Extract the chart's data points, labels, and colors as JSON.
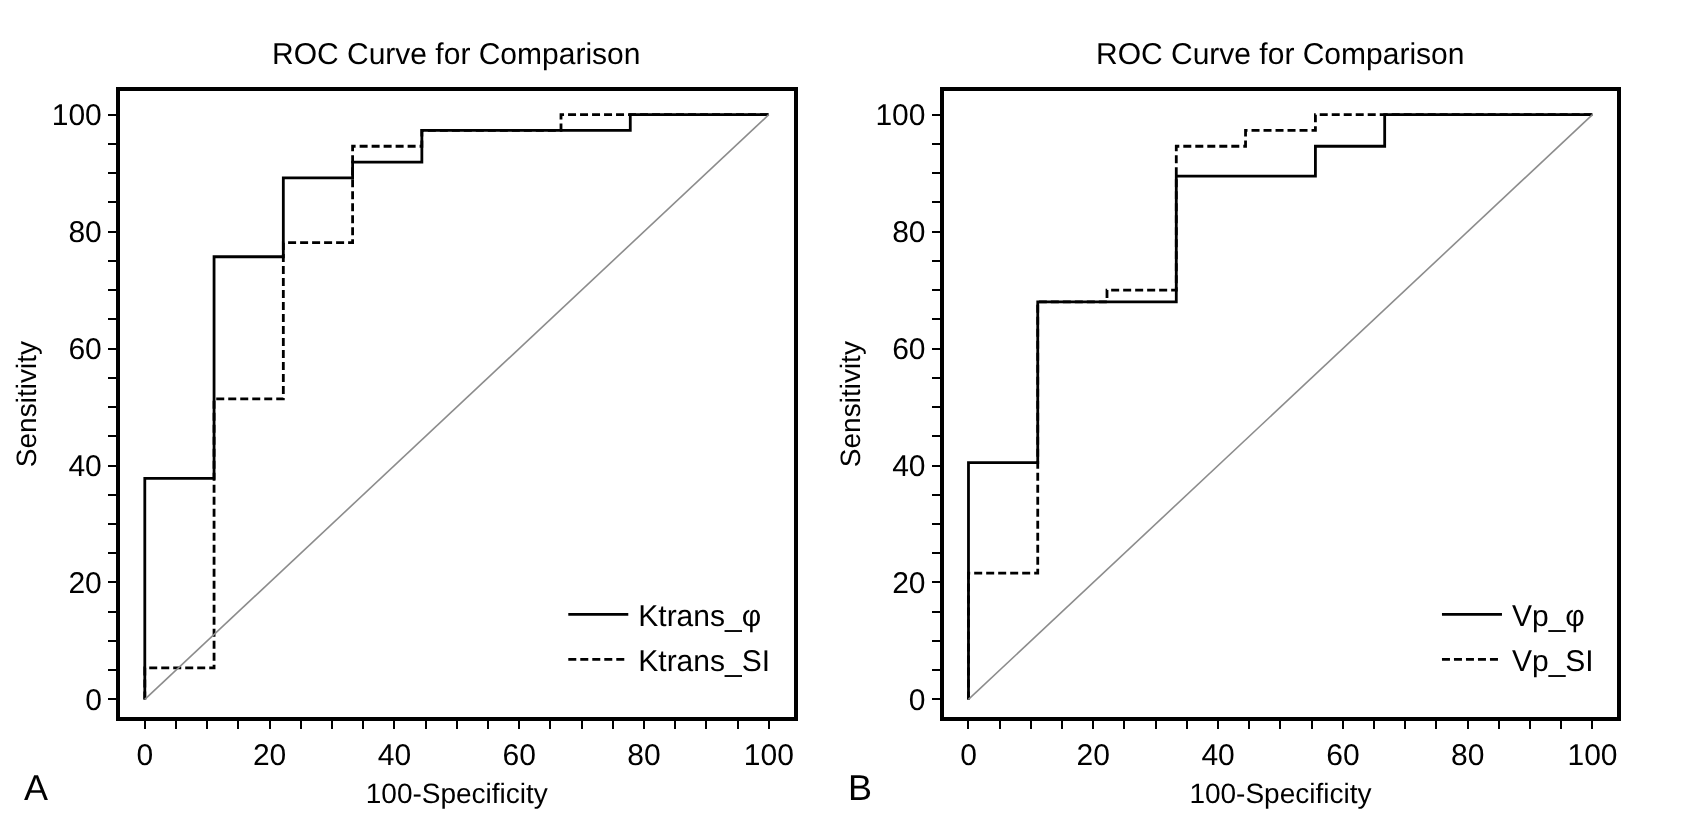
{
  "chart_data": [
    {
      "type": "step",
      "title": "ROC Curve for Comparison",
      "xlabel": "100-Specificity",
      "ylabel": "Sensitivity",
      "annotations": [
        "A"
      ],
      "xlim": [
        -4,
        104
      ],
      "ylim": [
        -3,
        104
      ],
      "xticks": [
        0,
        {
          "value": 5,
          "label": null
        },
        {
          "value": 10,
          "label": null
        },
        {
          "value": 15,
          "label": null
        },
        20,
        {
          "value": 25,
          "label": null
        },
        {
          "value": 30,
          "label": null
        },
        {
          "value": 35,
          "label": null
        },
        40,
        {
          "value": 45,
          "label": null
        },
        {
          "value": 50,
          "label": null
        },
        {
          "value": 55,
          "label": null
        },
        60,
        {
          "value": 65,
          "label": null
        },
        {
          "value": 70,
          "label": null
        },
        {
          "value": 75,
          "label": null
        },
        80,
        {
          "value": 85,
          "label": null
        },
        {
          "value": 90,
          "label": null
        },
        {
          "value": 95,
          "label": null
        },
        100
      ],
      "yticks": [
        0,
        {
          "value": 5,
          "label": null
        },
        {
          "value": 10,
          "label": null
        },
        {
          "value": 15,
          "label": null
        },
        20,
        {
          "value": 25,
          "label": null
        },
        {
          "value": 30,
          "label": null
        },
        {
          "value": 35,
          "label": null
        },
        40,
        {
          "value": 45,
          "label": null
        },
        {
          "value": 50,
          "label": null
        },
        {
          "value": 55,
          "label": null
        },
        60,
        {
          "value": 65,
          "label": null
        },
        {
          "value": 70,
          "label": null
        },
        {
          "value": 75,
          "label": null
        },
        80,
        {
          "value": 85,
          "label": null
        },
        {
          "value": 90,
          "label": null
        },
        {
          "value": 95,
          "label": null
        },
        100
      ],
      "legend": "bottom right",
      "series": [
        {
          "name": "Ktrans_φ",
          "color": "#000000",
          "line_style": "solid",
          "x": [
            0,
            0,
            11.1,
            22.2,
            33.3,
            44.4,
            77.8,
            100
          ],
          "values": [
            0,
            37.8,
            75.7,
            89.2,
            91.9,
            97.3,
            100,
            100
          ]
        },
        {
          "name": "Ktrans_SI",
          "color": "#000000",
          "line_style": "dashed",
          "x": [
            0,
            0,
            11.1,
            22.2,
            33.3,
            44.4,
            66.7,
            100
          ],
          "values": [
            0,
            5.4,
            51.4,
            78.1,
            94.6,
            97.3,
            100,
            100
          ]
        },
        {
          "type": "line",
          "color": "#8c8c8c",
          "line_style": "solid",
          "x": [
            0,
            100
          ],
          "values": [
            0,
            100
          ]
        }
      ]
    },
    {
      "type": "step",
      "title": "ROC Curve for Comparison",
      "xlabel": "100-Specificity",
      "ylabel": "Sensitivity",
      "annotations": [
        "B"
      ],
      "xlim": [
        -4,
        104
      ],
      "ylim": [
        -3,
        104
      ],
      "xticks": [
        0,
        {
          "value": 5,
          "label": null
        },
        {
          "value": 10,
          "label": null
        },
        {
          "value": 15,
          "label": null
        },
        20,
        {
          "value": 25,
          "label": null
        },
        {
          "value": 30,
          "label": null
        },
        {
          "value": 35,
          "label": null
        },
        40,
        {
          "value": 45,
          "label": null
        },
        {
          "value": 50,
          "label": null
        },
        {
          "value": 55,
          "label": null
        },
        60,
        {
          "value": 65,
          "label": null
        },
        {
          "value": 70,
          "label": null
        },
        {
          "value": 75,
          "label": null
        },
        80,
        {
          "value": 85,
          "label": null
        },
        {
          "value": 90,
          "label": null
        },
        {
          "value": 95,
          "label": null
        },
        100
      ],
      "yticks": [
        0,
        {
          "value": 5,
          "label": null
        },
        {
          "value": 10,
          "label": null
        },
        {
          "value": 15,
          "label": null
        },
        20,
        {
          "value": 25,
          "label": null
        },
        {
          "value": 30,
          "label": null
        },
        {
          "value": 35,
          "label": null
        },
        40,
        {
          "value": 45,
          "label": null
        },
        {
          "value": 50,
          "label": null
        },
        {
          "value": 55,
          "label": null
        },
        60,
        {
          "value": 65,
          "label": null
        },
        {
          "value": 70,
          "label": null
        },
        {
          "value": 75,
          "label": null
        },
        80,
        {
          "value": 85,
          "label": null
        },
        {
          "value": 90,
          "label": null
        },
        {
          "value": 95,
          "label": null
        },
        100
      ],
      "legend": "bottom right",
      "series": [
        {
          "name": "Vp_φ",
          "color": "#000000",
          "line_style": "solid",
          "x": [
            0,
            0,
            11.1,
            33.3,
            55.6,
            66.7,
            100
          ],
          "values": [
            0,
            40.5,
            68,
            89.5,
            94.6,
            100,
            100
          ]
        },
        {
          "name": "Vp_SI",
          "color": "#000000",
          "line_style": "dashed",
          "x": [
            0,
            0,
            11.1,
            22.2,
            33.3,
            44.4,
            55.6,
            100
          ],
          "values": [
            0,
            21.6,
            68,
            70,
            94.6,
            97.3,
            100,
            100
          ]
        },
        {
          "type": "line",
          "color": "#8c8c8c",
          "line_style": "solid",
          "x": [
            0,
            100
          ],
          "values": [
            0,
            100
          ]
        }
      ]
    }
  ]
}
